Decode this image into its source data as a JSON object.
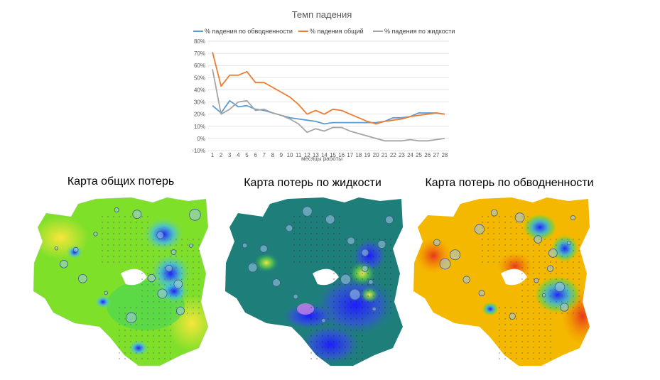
{
  "chart_data": {
    "type": "line",
    "title": "Темп падения",
    "xlabel": "месяцы работы",
    "ylabel": "",
    "categories": [
      1,
      2,
      3,
      4,
      5,
      6,
      7,
      8,
      9,
      10,
      11,
      12,
      13,
      14,
      15,
      16,
      17,
      18,
      19,
      20,
      21,
      22,
      23,
      24,
      25,
      26,
      27,
      28
    ],
    "ylim": [
      -10,
      80
    ],
    "yticks": [
      "-10%",
      "0%",
      "10%",
      "20%",
      "30%",
      "40%",
      "50%",
      "60%",
      "70%",
      "80%"
    ],
    "legend_position": "top",
    "series": [
      {
        "name": "% падения по обводненности",
        "color": "#5B9BD5",
        "values": [
          27,
          21,
          31,
          26,
          27,
          24,
          23,
          21,
          19,
          17,
          16,
          15,
          14,
          12,
          13,
          13,
          13,
          13,
          13,
          13,
          14,
          17,
          17,
          18,
          21,
          21,
          21,
          20
        ]
      },
      {
        "name": "% падения общий",
        "color": "#ED7D31",
        "values": [
          71,
          43,
          52,
          52,
          55,
          46,
          46,
          42,
          38,
          34,
          28,
          20,
          23,
          20,
          24,
          23,
          20,
          17,
          14,
          12,
          14,
          15,
          16,
          18,
          19,
          20,
          21,
          20
        ]
      },
      {
        "name": "% падения по жидкости",
        "color": "#A5A5A5",
        "values": [
          57,
          20,
          24,
          30,
          31,
          23,
          24,
          21,
          19,
          16,
          12,
          5,
          8,
          6,
          9,
          9,
          6,
          4,
          2,
          0,
          -2,
          -2,
          -2,
          -1,
          -2,
          -2,
          -1,
          0
        ]
      }
    ]
  },
  "maps": [
    {
      "title": "Карта общих потерь"
    },
    {
      "title": "Карта потерь по жидкости"
    },
    {
      "title": "Карта потерь по обводненности"
    }
  ]
}
